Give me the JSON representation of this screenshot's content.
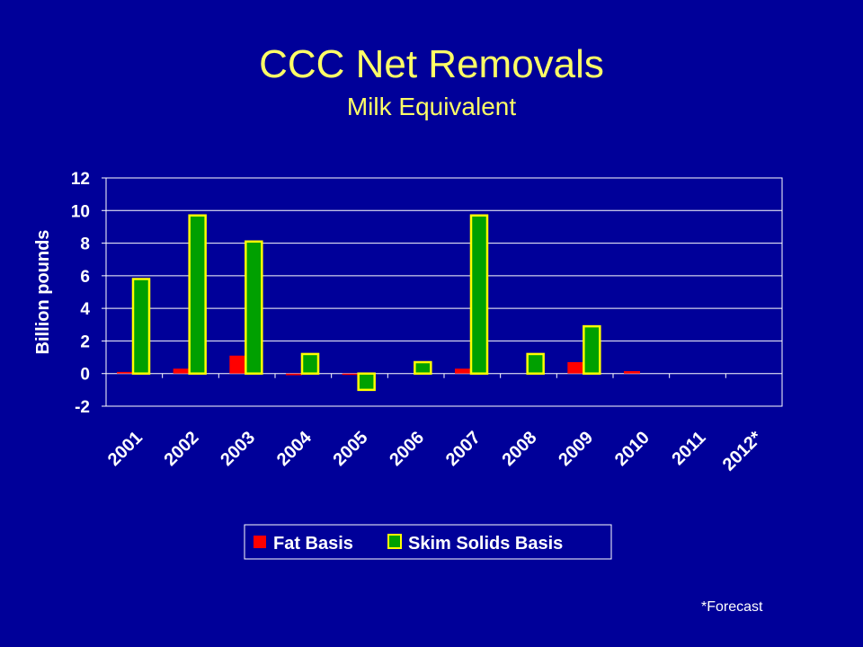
{
  "title": "CCC Net Removals",
  "subtitle": "Milk Equivalent",
  "footnote": "*Forecast",
  "colors": {
    "background": "#000099",
    "title": "#FFFF66",
    "fat": "#FF0000",
    "skim_fill": "#00A000",
    "skim_border": "#FFFF00",
    "text": "#FFFFFF"
  },
  "chart_data": {
    "type": "bar",
    "ylabel": "Billion pounds",
    "ylim": [
      -2,
      12
    ],
    "yticks": [
      -2,
      0,
      2,
      4,
      6,
      8,
      10,
      12
    ],
    "grid": true,
    "legend_position": "bottom",
    "categories": [
      "2001",
      "2002",
      "2003",
      "2004",
      "2005",
      "2006",
      "2007",
      "2008",
      "2009",
      "2010",
      "2011",
      "2012*"
    ],
    "series": [
      {
        "name": "Fat Basis",
        "values": [
          0.1,
          0.3,
          1.1,
          -0.1,
          -0.05,
          0,
          0.3,
          0,
          0.7,
          0.15,
          0,
          0
        ]
      },
      {
        "name": "Skim Solids Basis",
        "values": [
          5.8,
          9.7,
          8.1,
          1.2,
          -1.0,
          0.7,
          9.7,
          1.2,
          2.9,
          0,
          0,
          0
        ]
      }
    ]
  }
}
